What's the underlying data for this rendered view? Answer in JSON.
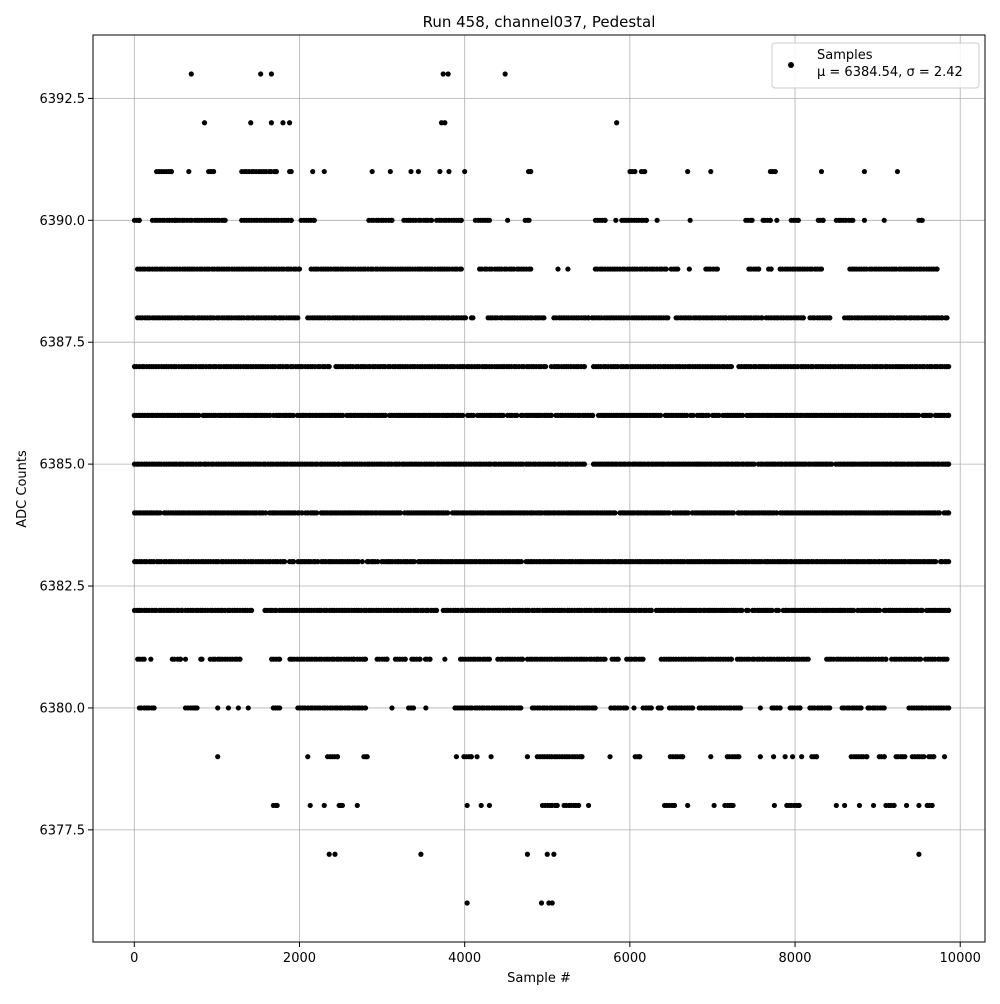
{
  "chart_data": {
    "type": "scatter",
    "title": "Run 458, channel037, Pedestal",
    "xlabel": "Sample #",
    "ylabel": "ADC Counts",
    "xlim": [
      -500,
      10300
    ],
    "ylim": [
      6375.2,
      6393.8
    ],
    "xticks": [
      0,
      2000,
      4000,
      6000,
      8000,
      10000
    ],
    "yticks": [
      6377.5,
      6380.0,
      6382.5,
      6385.0,
      6387.5,
      6390.0,
      6392.5
    ],
    "xtick_labels": [
      "0",
      "2000",
      "4000",
      "6000",
      "8000",
      "10000"
    ],
    "ytick_labels": [
      "6377.5",
      "6380.0",
      "6382.5",
      "6385.0",
      "6387.5",
      "6390.0",
      "6392.5"
    ],
    "grid": true,
    "legend_position": "top-right",
    "series": [
      {
        "name": "Samples",
        "color": "#000000",
        "n_samples": 9850,
        "points": [
          {
            "x": 690,
            "y": 6393
          },
          {
            "x": 1530,
            "y": 6393
          },
          {
            "x": 1660,
            "y": 6393
          },
          {
            "x": 3740,
            "y": 6393
          },
          {
            "x": 3800,
            "y": 6393
          },
          {
            "x": 4490,
            "y": 6393
          },
          {
            "x": 850,
            "y": 6392
          },
          {
            "x": 1410,
            "y": 6392
          },
          {
            "x": 1660,
            "y": 6392
          },
          {
            "x": 1800,
            "y": 6392
          },
          {
            "x": 1880,
            "y": 6392
          },
          {
            "x": 3720,
            "y": 6392
          },
          {
            "x": 3760,
            "y": 6392
          },
          {
            "x": 5840,
            "y": 6392
          },
          {
            "x": 4030,
            "y": 6376
          },
          {
            "x": 4930,
            "y": 6376
          },
          {
            "x": 5020,
            "y": 6376
          },
          {
            "x": 5060,
            "y": 6376
          },
          {
            "x": 2360,
            "y": 6377
          },
          {
            "x": 2430,
            "y": 6377
          },
          {
            "x": 3470,
            "y": 6377
          },
          {
            "x": 4760,
            "y": 6377
          },
          {
            "x": 5000,
            "y": 6377
          },
          {
            "x": 5080,
            "y": 6377
          },
          {
            "x": 9500,
            "y": 6377
          }
        ],
        "bands": [
          {
            "y": 6378,
            "x_ranges": [
              [
                1680,
                1730
              ],
              [
                2130,
                2130
              ],
              [
                2300,
                2300
              ],
              [
                2480,
                2520
              ],
              [
                2700,
                2700
              ],
              [
                4030,
                4030
              ],
              [
                4200,
                4200
              ],
              [
                4300,
                4300
              ],
              [
                4940,
                5120
              ],
              [
                5200,
                5380
              ],
              [
                5500,
                5500
              ],
              [
                6420,
                6540
              ],
              [
                6700,
                6700
              ],
              [
                7020,
                7020
              ],
              [
                7150,
                7250
              ],
              [
                7750,
                7750
              ],
              [
                7900,
                8050
              ],
              [
                8500,
                8500
              ],
              [
                8600,
                8600
              ],
              [
                8780,
                8780
              ],
              [
                8950,
                8950
              ],
              [
                9100,
                9200
              ],
              [
                9350,
                9350
              ],
              [
                9500,
                9500
              ],
              [
                9600,
                9660
              ]
            ]
          },
          {
            "y": 6379,
            "x_ranges": [
              [
                1010,
                1010
              ],
              [
                2100,
                2100
              ],
              [
                2340,
                2460
              ],
              [
                2780,
                2820
              ],
              [
                3900,
                3900
              ],
              [
                3990,
                4080
              ],
              [
                4150,
                4150
              ],
              [
                4320,
                4320
              ],
              [
                4760,
                4760
              ],
              [
                4880,
                5420
              ],
              [
                5760,
                5760
              ],
              [
                6060,
                6120
              ],
              [
                6490,
                6640
              ],
              [
                6980,
                6980
              ],
              [
                7180,
                7320
              ],
              [
                7580,
                7580
              ],
              [
                7740,
                7740
              ],
              [
                7880,
                7880
              ],
              [
                7970,
                7970
              ],
              [
                8080,
                8080
              ],
              [
                8200,
                8260
              ],
              [
                8680,
                8870
              ],
              [
                9020,
                9080
              ],
              [
                9220,
                9330
              ],
              [
                9420,
                9560
              ],
              [
                9620,
                9680
              ],
              [
                9810,
                9810
              ]
            ]
          },
          {
            "y": 6380,
            "x_ranges": [
              [
                60,
                240
              ],
              [
                620,
                740
              ],
              [
                760,
                760
              ],
              [
                1010,
                1010
              ],
              [
                1140,
                1140
              ],
              [
                1260,
                1260
              ],
              [
                1380,
                1380
              ],
              [
                1680,
                1760
              ],
              [
                1980,
                2800
              ],
              [
                3120,
                3120
              ],
              [
                3320,
                3380
              ],
              [
                3530,
                3530
              ],
              [
                3880,
                4680
              ],
              [
                4820,
                5580
              ],
              [
                5770,
                5960
              ],
              [
                6050,
                6050
              ],
              [
                6160,
                6260
              ],
              [
                6340,
                6380
              ],
              [
                6480,
                6760
              ],
              [
                6840,
                7340
              ],
              [
                7580,
                7580
              ],
              [
                7720,
                7820
              ],
              [
                7940,
                8060
              ],
              [
                8180,
                8420
              ],
              [
                8570,
                8800
              ],
              [
                8880,
                9080
              ],
              [
                9380,
                9860
              ]
            ]
          },
          {
            "y": 6381,
            "x_ranges": [
              [
                40,
                120
              ],
              [
                200,
                200
              ],
              [
                460,
                560
              ],
              [
                620,
                620
              ],
              [
                800,
                820
              ],
              [
                920,
                1280
              ],
              [
                1660,
                1760
              ],
              [
                1880,
                2660
              ],
              [
                2700,
                2800
              ],
              [
                2940,
                3060
              ],
              [
                3160,
                3280
              ],
              [
                3360,
                3460
              ],
              [
                3520,
                3580
              ],
              [
                3760,
                3760
              ],
              [
                3950,
                4300
              ],
              [
                4400,
                4700
              ],
              [
                4760,
                5600
              ],
              [
                5620,
                5700
              ],
              [
                5780,
                5860
              ],
              [
                5960,
                6160
              ],
              [
                6380,
                7230
              ],
              [
                7300,
                8160
              ],
              [
                8380,
                9100
              ],
              [
                9170,
                9520
              ],
              [
                9580,
                9840
              ]
            ]
          },
          {
            "y": 6382,
            "x_ranges": [
              [
                0,
                580
              ],
              [
                620,
                1420
              ],
              [
                1580,
                1720
              ],
              [
                1760,
                3660
              ],
              [
                3740,
                4780
              ],
              [
                4820,
                6260
              ],
              [
                6320,
                9860
              ]
            ]
          },
          {
            "y": 6383,
            "x_ranges": [
              [
                0,
                1820
              ],
              [
                1880,
                9860
              ]
            ]
          },
          {
            "y": 6384,
            "x_ranges": [
              [
                0,
                9860
              ]
            ]
          },
          {
            "y": 6385,
            "x_ranges": [
              [
                0,
                2480
              ],
              [
                2520,
                5450
              ],
              [
                5560,
                9860
              ]
            ]
          },
          {
            "y": 6386,
            "x_ranges": [
              [
                0,
                5050
              ],
              [
                5100,
                5550
              ],
              [
                5620,
                9860
              ]
            ]
          },
          {
            "y": 6387,
            "x_ranges": [
              [
                0,
                2360
              ],
              [
                2440,
                4980
              ],
              [
                5050,
                5450
              ],
              [
                5560,
                7230
              ],
              [
                7320,
                9860
              ]
            ]
          },
          {
            "y": 6388,
            "x_ranges": [
              [
                40,
                1980
              ],
              [
                2100,
                4010
              ],
              [
                4080,
                4100
              ],
              [
                4280,
                4960
              ],
              [
                5080,
                5500
              ],
              [
                5540,
                6460
              ],
              [
                6560,
                7160
              ],
              [
                7200,
                7600
              ],
              [
                7650,
                8100
              ],
              [
                8180,
                8420
              ],
              [
                8600,
                9780
              ],
              [
                9820,
                9840
              ]
            ]
          },
          {
            "y": 6389,
            "x_ranges": [
              [
                40,
                2000
              ],
              [
                2140,
                3960
              ],
              [
                4180,
                4800
              ],
              [
                5130,
                5130
              ],
              [
                5250,
                5250
              ],
              [
                5580,
                6440
              ],
              [
                6500,
                6580
              ],
              [
                6720,
                6720
              ],
              [
                6920,
                7060
              ],
              [
                7440,
                7560
              ],
              [
                7680,
                7710
              ],
              [
                7820,
                8320
              ],
              [
                8660,
                9720
              ]
            ]
          },
          {
            "y": 6390,
            "x_ranges": [
              [
                0,
                60
              ],
              [
                220,
                500
              ],
              [
                520,
                1100
              ],
              [
                1300,
                1900
              ],
              [
                2020,
                2180
              ],
              [
                2840,
                3120
              ],
              [
                3260,
                3600
              ],
              [
                3660,
                3960
              ],
              [
                4130,
                4300
              ],
              [
                4520,
                4520
              ],
              [
                4730,
                4780
              ],
              [
                5580,
                5700
              ],
              [
                5830,
                5830
              ],
              [
                5900,
                6200
              ],
              [
                6330,
                6330
              ],
              [
                6730,
                6730
              ],
              [
                7400,
                7480
              ],
              [
                7610,
                7700
              ],
              [
                7780,
                7780
              ],
              [
                7950,
                8040
              ],
              [
                8280,
                8340
              ],
              [
                8500,
                8700
              ],
              [
                8840,
                8840
              ],
              [
                9080,
                9080
              ],
              [
                9500,
                9540
              ]
            ]
          },
          {
            "y": 6391,
            "x_ranges": [
              [
                270,
                450
              ],
              [
                660,
                660
              ],
              [
                900,
                960
              ],
              [
                1300,
                1720
              ],
              [
                1880,
                1900
              ],
              [
                2160,
                2160
              ],
              [
                2300,
                2300
              ],
              [
                2880,
                2880
              ],
              [
                3100,
                3100
              ],
              [
                3350,
                3350
              ],
              [
                3440,
                3440
              ],
              [
                3700,
                3700
              ],
              [
                3810,
                3810
              ],
              [
                4000,
                4000
              ],
              [
                4770,
                4800
              ],
              [
                6000,
                6060
              ],
              [
                6140,
                6180
              ],
              [
                6700,
                6700
              ],
              [
                6980,
                6980
              ],
              [
                7700,
                7760
              ],
              [
                8320,
                8320
              ],
              [
                8840,
                8840
              ],
              [
                9240,
                9240
              ]
            ]
          }
        ]
      }
    ],
    "legend": {
      "entries": [
        {
          "label": "Samples"
        },
        {
          "label": "μ = 6384.54, σ = 2.42"
        }
      ]
    },
    "mean": 6384.54,
    "sigma": 2.42
  }
}
